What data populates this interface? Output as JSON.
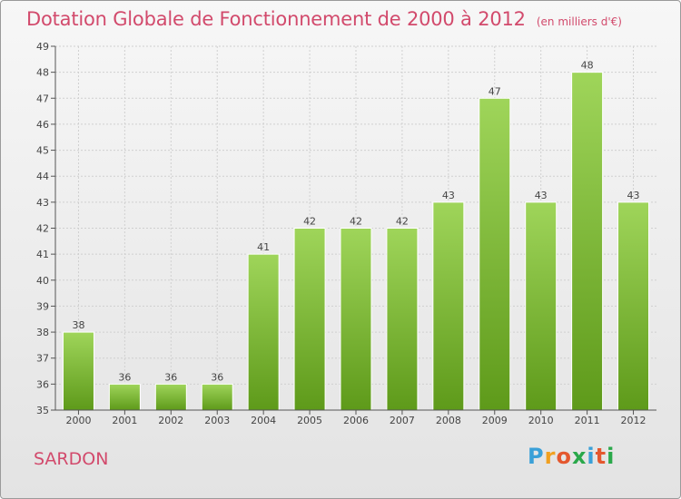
{
  "header": {
    "title": "Dotation Globale de Fonctionnement de 2000 à 2012",
    "unit": "(en milliers d'€)"
  },
  "footer": {
    "commune": "SARDON",
    "logo": {
      "text": "Proxiti",
      "letter_colors": [
        "#3aa0d8",
        "#f0a020",
        "#e4572e",
        "#2aa84a",
        "#3aa0d8",
        "#e4572e",
        "#2aa84a"
      ]
    }
  },
  "colors": {
    "bar_top": "#9fd55a",
    "bar_bottom": "#5e9a1a",
    "title": "#d24a6c"
  },
  "chart_data": {
    "type": "bar",
    "title": "Dotation Globale de Fonctionnement de 2000 à 2012",
    "subtitle": "(en milliers d'€)",
    "categories": [
      "2000",
      "2001",
      "2002",
      "2003",
      "2004",
      "2005",
      "2006",
      "2007",
      "2008",
      "2009",
      "2010",
      "2011",
      "2012"
    ],
    "values": [
      38,
      36,
      36,
      36,
      41,
      42,
      42,
      42,
      43,
      47,
      43,
      48,
      43
    ],
    "ylim": [
      35,
      49
    ],
    "yticks": [
      35,
      36,
      37,
      38,
      39,
      40,
      41,
      42,
      43,
      44,
      45,
      46,
      47,
      48,
      49
    ],
    "grid": true
  }
}
